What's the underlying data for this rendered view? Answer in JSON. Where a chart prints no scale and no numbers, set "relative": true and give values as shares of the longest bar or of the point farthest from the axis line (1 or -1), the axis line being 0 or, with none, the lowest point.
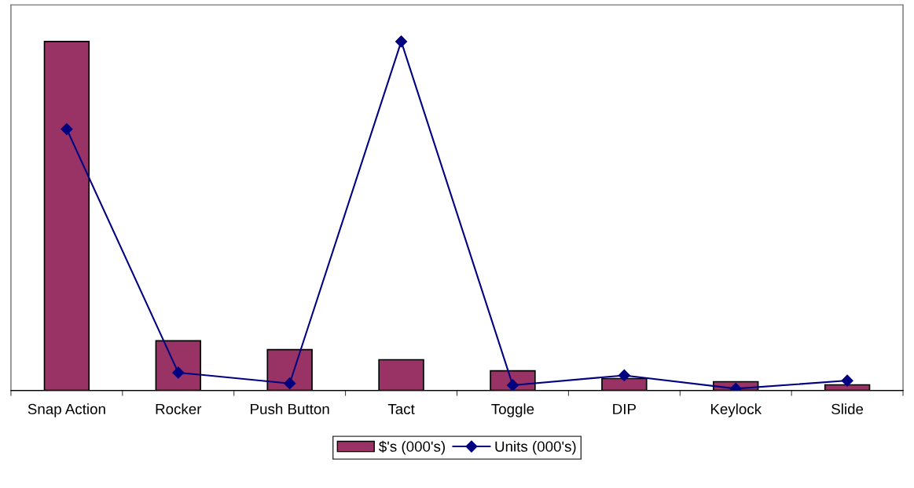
{
  "chart_data": {
    "type": "bar",
    "relative": true,
    "legend": "bottom",
    "grid": false,
    "categories": [
      "Snap Action",
      "Rocker",
      "Push Button",
      "Tact",
      "Toggle",
      "DIP",
      "Keylock",
      "Slide"
    ],
    "series": [
      {
        "name": "$'s (000's)",
        "color": "#993366",
        "values": [
          1,
          0.142,
          0.117,
          0.088,
          0.056,
          0.034,
          0.025,
          0.016
        ]
      },
      {
        "name": "Units (000's)",
        "type": "line",
        "axis": "y2",
        "color": "#000080",
        "marker": "diamond",
        "line_style": "solid",
        "values": [
          0.749,
          0.051,
          0.02,
          1,
          0.015,
          0.043,
          0.005,
          0.028
        ]
      }
    ]
  }
}
